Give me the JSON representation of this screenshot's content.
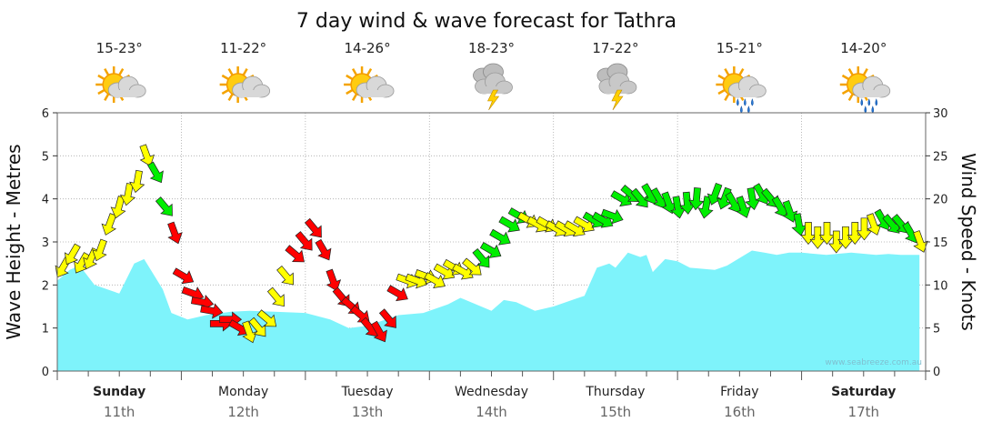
{
  "chart_data": {
    "type": "area",
    "title": "7 day wind & wave forecast for Tathra",
    "ylabel_left": "Wave Height - Metres",
    "ylabel_right": "Wind Speed - Knots",
    "ylim_left": [
      0,
      6
    ],
    "ylim_right": [
      0,
      30
    ],
    "yticks_left": [
      "0",
      "1",
      "2",
      "3",
      "4",
      "5",
      "6"
    ],
    "yticks_right": [
      "0",
      "5",
      "10",
      "15",
      "20",
      "25",
      "30"
    ],
    "watermark": "www.seabreeze.com.au",
    "days": [
      {
        "name": "Sunday",
        "date": "11th",
        "bold": true,
        "temp": "15-23°",
        "icon": "partly-cloudy-sun-icon"
      },
      {
        "name": "Monday",
        "date": "12th",
        "bold": false,
        "temp": "11-22°",
        "icon": "partly-cloudy-sun-icon"
      },
      {
        "name": "Tuesday",
        "date": "13th",
        "bold": false,
        "temp": "14-26°",
        "icon": "partly-cloudy-sun-icon"
      },
      {
        "name": "Wednesday",
        "date": "14th",
        "bold": false,
        "temp": "18-23°",
        "icon": "thunderstorm-icon"
      },
      {
        "name": "Thursday",
        "date": "15th",
        "bold": false,
        "temp": "17-22°",
        "icon": "thunderstorm-icon"
      },
      {
        "name": "Friday",
        "date": "16th",
        "bold": false,
        "temp": "15-21°",
        "icon": "sun-showers-icon"
      },
      {
        "name": "Saturday",
        "date": "17th",
        "bold": true,
        "temp": "14-20°",
        "icon": "sun-showers-icon"
      }
    ],
    "wave_height": {
      "x_days": [
        0,
        0.1,
        0.18,
        0.3,
        0.5,
        0.62,
        0.7,
        0.85,
        0.92,
        1.05,
        1.2,
        1.4,
        1.55,
        1.75,
        2.0,
        2.2,
        2.35,
        2.5,
        2.75,
        2.95,
        3.0,
        3.15,
        3.25,
        3.5,
        3.6,
        3.7,
        3.85,
        4.0,
        4.15,
        4.25,
        4.35,
        4.45,
        4.5,
        4.6,
        4.7,
        4.75,
        4.8,
        4.9,
        5.0,
        5.1,
        5.3,
        5.4,
        5.6,
        5.7,
        5.8,
        5.9,
        6.0,
        6.2,
        6.4,
        6.6,
        6.7,
        6.8,
        6.95
      ],
      "values": [
        2.1,
        2.35,
        2.45,
        2.0,
        1.8,
        2.5,
        2.6,
        1.9,
        1.35,
        1.2,
        1.3,
        1.38,
        1.4,
        1.38,
        1.35,
        1.2,
        1.0,
        1.05,
        1.3,
        1.35,
        1.4,
        1.55,
        1.7,
        1.4,
        1.65,
        1.6,
        1.4,
        1.5,
        1.65,
        1.75,
        2.4,
        2.5,
        2.4,
        2.75,
        2.65,
        2.7,
        2.3,
        2.6,
        2.55,
        2.4,
        2.35,
        2.45,
        2.8,
        2.75,
        2.7,
        2.75,
        2.75,
        2.7,
        2.75,
        2.7,
        2.72,
        2.7,
        2.7
      ]
    },
    "wind": {
      "colors": {
        "strong": "#ff0000",
        "moderate": "#ffff00",
        "light": "#00ee00"
      },
      "speed_knots": [
        12.0,
        13.5,
        12.5,
        13.0,
        14.0,
        17.0,
        19.0,
        20.5,
        22.0,
        25.0,
        23.0,
        19.0,
        16.0,
        11.0,
        9.0,
        8.0,
        7.0,
        5.5,
        6.0,
        5.0,
        4.5,
        5.0,
        6.0,
        8.5,
        11.0,
        13.5,
        15.0,
        16.5,
        14.0,
        10.5,
        8.5,
        7.5,
        6.5,
        5.0,
        4.5,
        6.0,
        9.0,
        10.5,
        10.5,
        11.0,
        10.5,
        11.5,
        12.0,
        11.5,
        12.0,
        13.0,
        14.0,
        15.5,
        17.0,
        18.0,
        17.5,
        17.0,
        17.0,
        16.5,
        16.5,
        16.5,
        17.0,
        17.5,
        17.5,
        18.0,
        20.0,
        20.5,
        20.0,
        20.5,
        20.0,
        19.5,
        19.0,
        19.5,
        20.0,
        19.0,
        20.5,
        20.0,
        19.5,
        19.0,
        20.0,
        20.5,
        20.0,
        19.0,
        18.5,
        17.0,
        16.0,
        15.5,
        16.0,
        15.0,
        15.5,
        16.0,
        16.5,
        17.0,
        17.5,
        17.0,
        17.0,
        16.0,
        15.0
      ],
      "direction_deg": [
        30,
        30,
        30,
        25,
        20,
        20,
        15,
        10,
        10,
        340,
        330,
        320,
        340,
        300,
        290,
        280,
        280,
        270,
        270,
        300,
        340,
        320,
        310,
        320,
        320,
        310,
        320,
        320,
        330,
        340,
        320,
        310,
        310,
        320,
        330,
        320,
        300,
        290,
        290,
        290,
        300,
        300,
        300,
        300,
        310,
        320,
        300,
        300,
        300,
        300,
        300,
        300,
        300,
        300,
        300,
        300,
        300,
        300,
        300,
        290,
        300,
        310,
        320,
        330,
        330,
        340,
        350,
        355,
        5,
        10,
        20,
        20,
        330,
        340,
        350,
        330,
        320,
        330,
        340,
        350,
        0,
        0,
        0,
        0,
        0,
        0,
        0,
        340,
        330,
        320,
        320,
        330,
        340
      ]
    }
  }
}
